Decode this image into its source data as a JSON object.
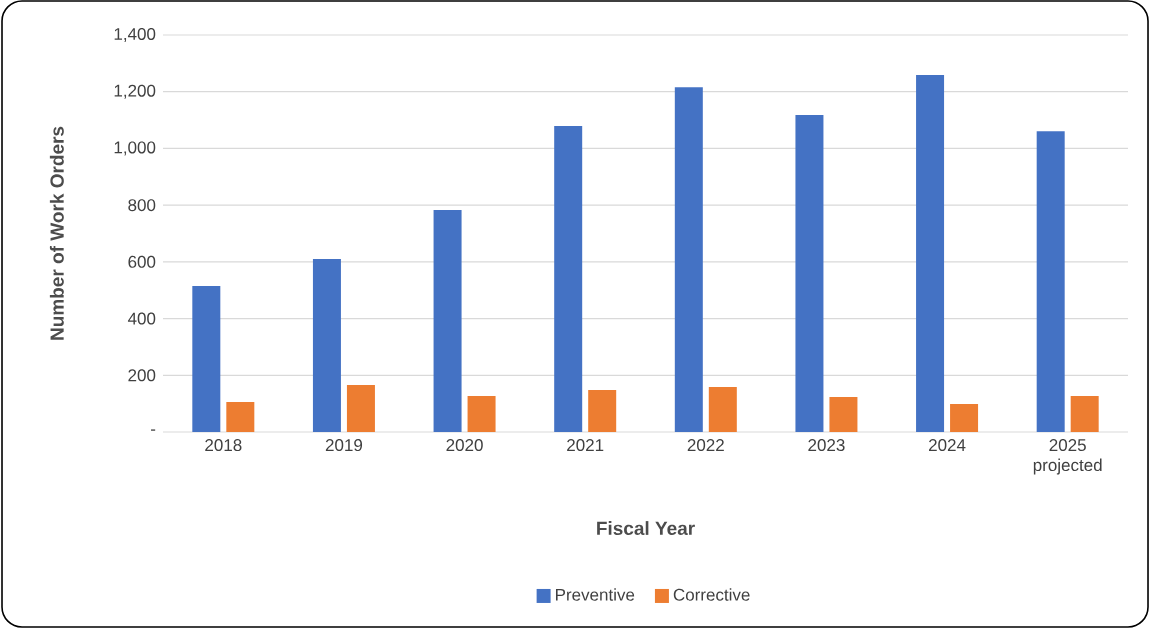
{
  "chart_data": {
    "type": "bar",
    "xlabel": "Fiscal Year",
    "ylabel": "Number of Work Orders",
    "categories": [
      "2018",
      "2019",
      "2020",
      "2021",
      "2022",
      "2023",
      "2024",
      "2025 projected"
    ],
    "series": [
      {
        "name": "Preventive",
        "color": "#4472c4",
        "values": [
          515,
          610,
          783,
          1079,
          1216,
          1118,
          1259,
          1061
        ]
      },
      {
        "name": "Corrective",
        "color": "#ed7d31",
        "values": [
          106,
          166,
          127,
          148,
          159,
          123,
          99,
          127
        ]
      }
    ],
    "ylim": [
      0,
      1400
    ],
    "yticks": [
      {
        "value": 0,
        "label": "-"
      },
      {
        "value": 200,
        "label": "200"
      },
      {
        "value": 400,
        "label": "400"
      },
      {
        "value": 600,
        "label": "600"
      },
      {
        "value": 800,
        "label": "800"
      },
      {
        "value": 1000,
        "label": "1,000"
      },
      {
        "value": 1200,
        "label": "1,200"
      },
      {
        "value": 1400,
        "label": "1,400"
      }
    ],
    "grid": "y",
    "legend": "bottom"
  }
}
